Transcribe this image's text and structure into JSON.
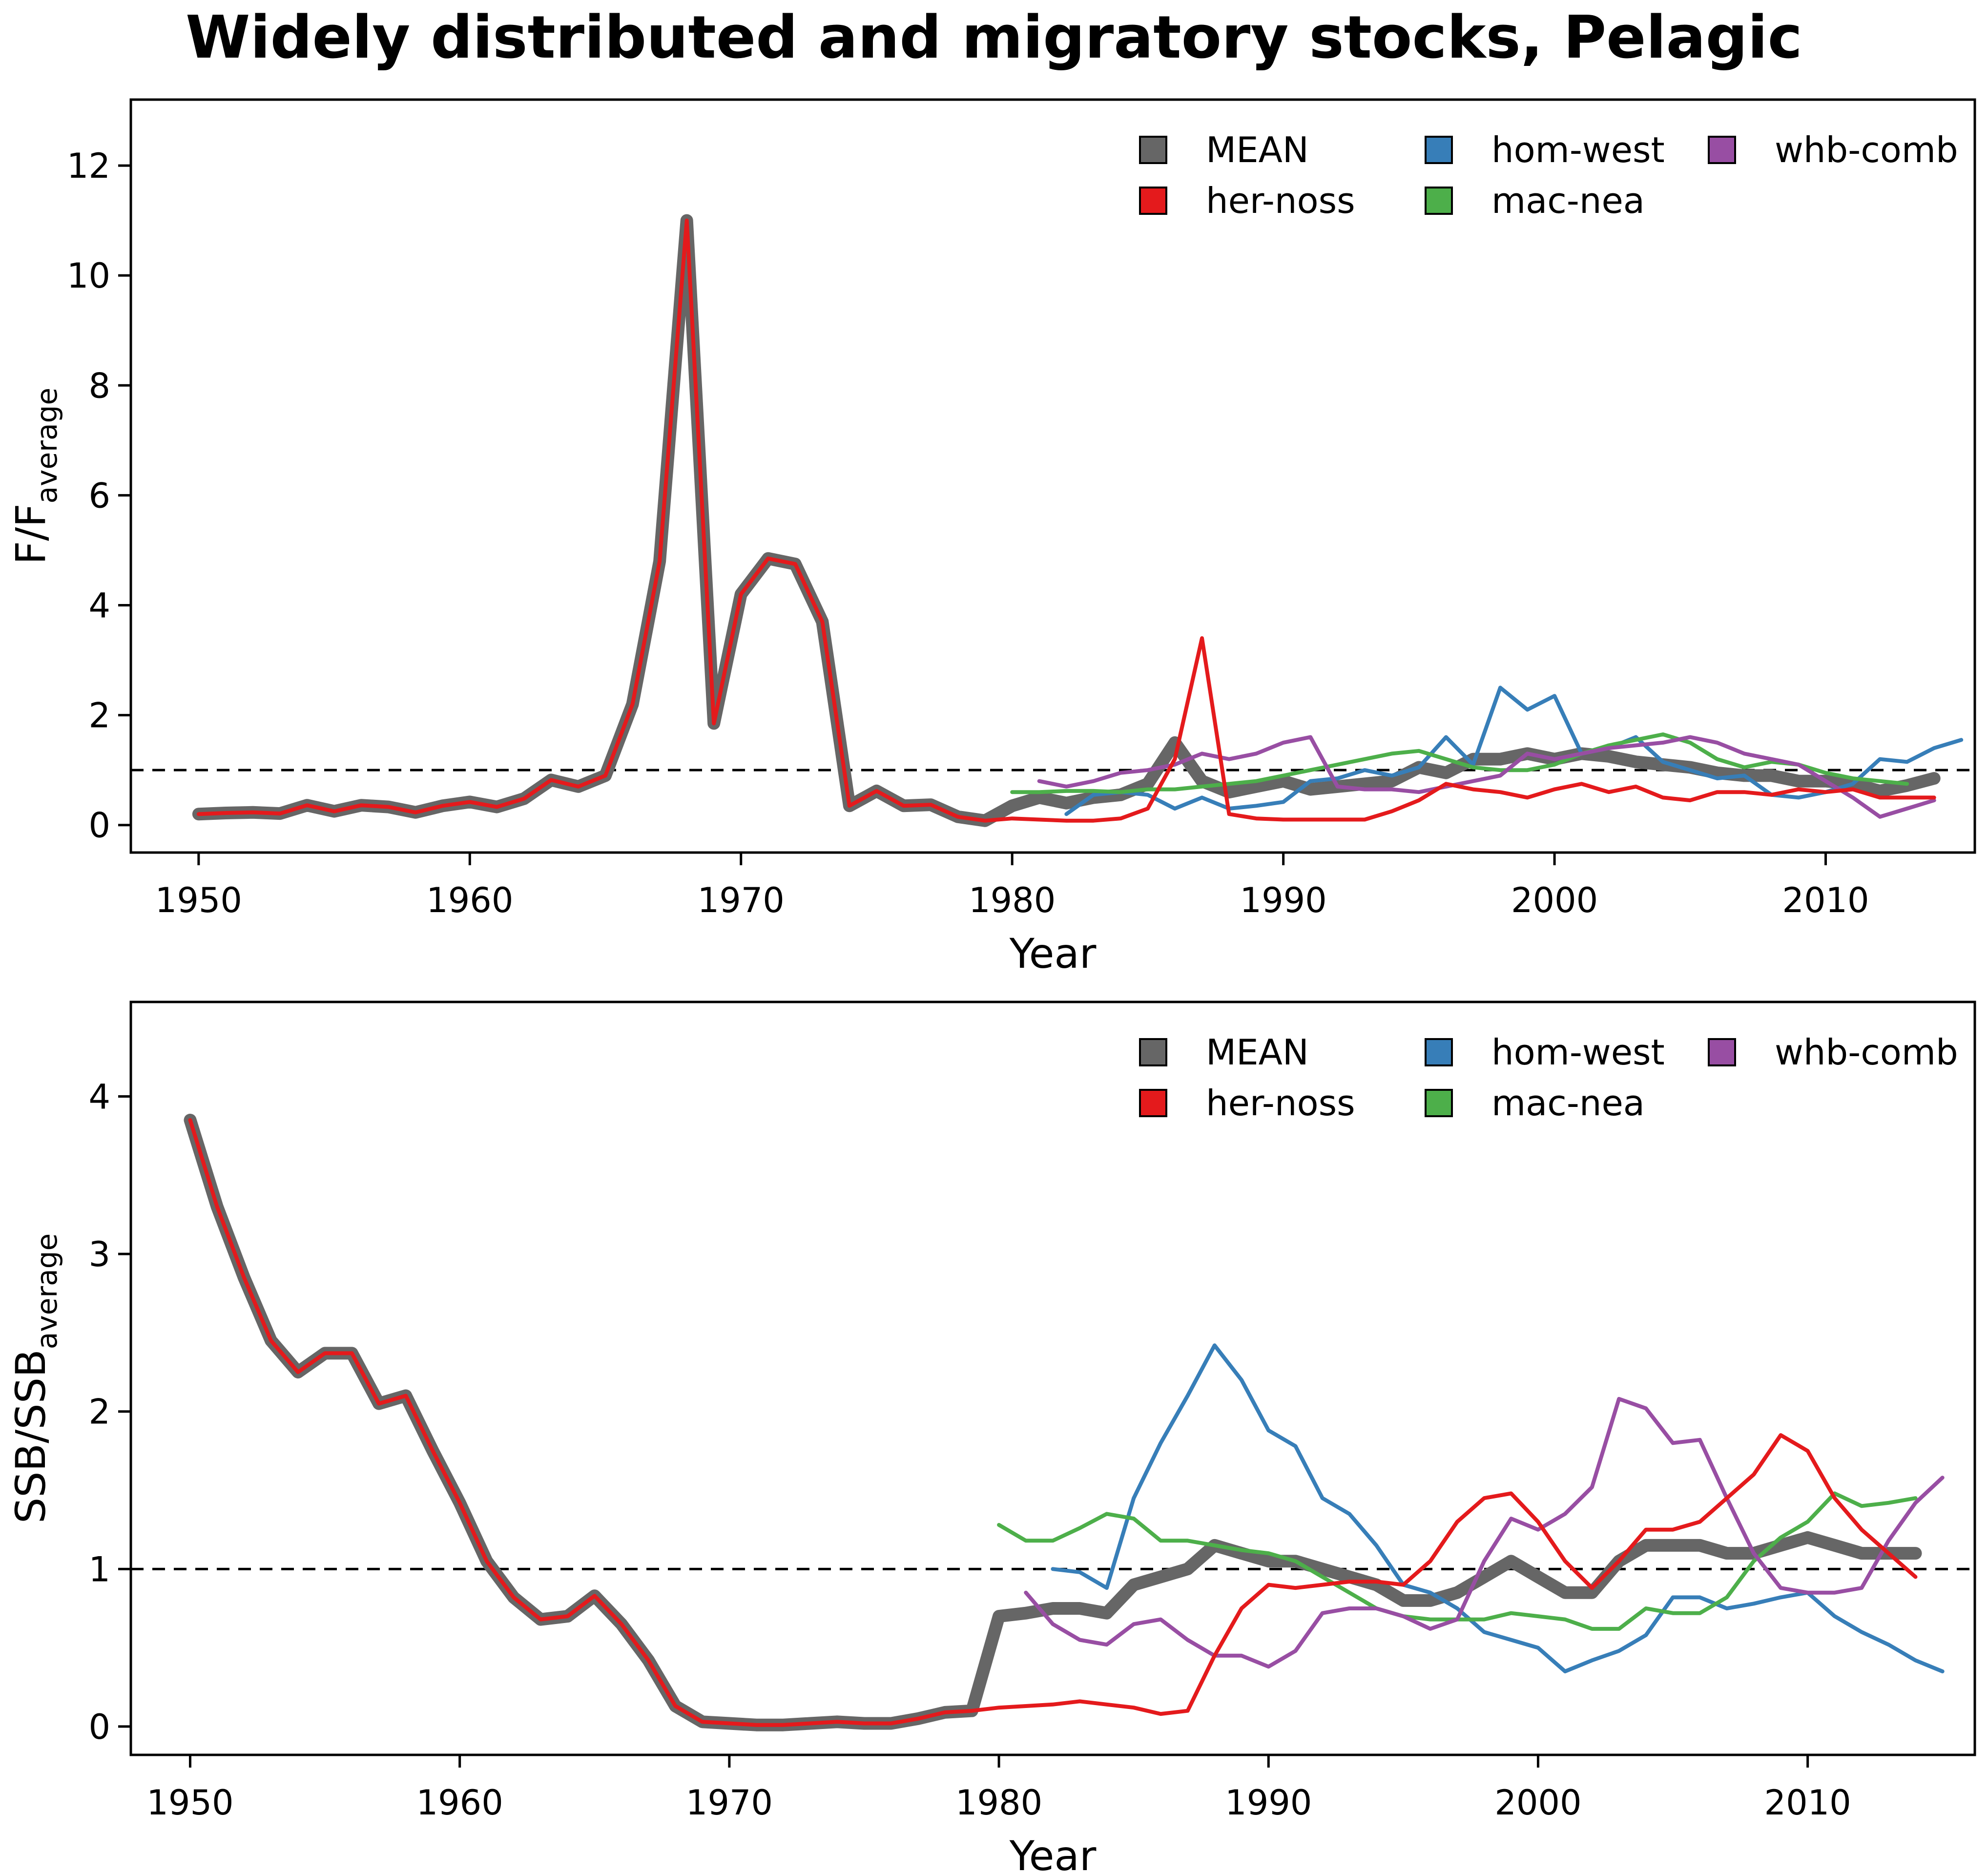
{
  "title": "Widely distributed and migratory stocks, Pelagic",
  "colors": {
    "MEAN": "#666666",
    "her-noss": "#e41a1c",
    "hom-west": "#377eb8",
    "mac-nea": "#4daf4a",
    "whb-comb": "#984ea3"
  },
  "chart_data": [
    {
      "type": "line",
      "xlabel": "Year",
      "ylabel_main": "F/F",
      "ylabel_sub": "average",
      "xlim": [
        1947.5,
        2015.5
      ],
      "ylim": [
        -0.5,
        13.2
      ],
      "xticks": [
        1950,
        1960,
        1970,
        1980,
        1990,
        2000,
        2010
      ],
      "yticks": [
        0,
        2,
        4,
        6,
        8,
        10,
        12
      ],
      "reference_line": 1,
      "legend": [
        "MEAN",
        "her-noss",
        "hom-west",
        "mac-nea",
        "whb-comb"
      ],
      "legend_position": "top-right",
      "series": [
        {
          "name": "MEAN",
          "x0": 1950,
          "values": [
            0.2,
            0.22,
            0.23,
            0.21,
            0.36,
            0.25,
            0.36,
            0.33,
            0.23,
            0.35,
            0.42,
            0.33,
            0.48,
            0.82,
            0.7,
            0.9,
            2.2,
            4.8,
            11.0,
            1.85,
            4.2,
            4.85,
            4.75,
            3.7,
            0.35,
            0.62,
            0.35,
            0.37,
            0.15,
            0.08,
            0.35,
            0.5,
            0.4,
            0.5,
            0.55,
            0.75,
            1.5,
            0.8,
            0.6,
            0.7,
            0.8,
            0.65,
            0.7,
            0.75,
            0.8,
            1.05,
            0.95,
            1.2,
            1.2,
            1.3,
            1.2,
            1.3,
            1.25,
            1.15,
            1.1,
            1.05,
            0.95,
            0.9,
            0.9,
            0.8,
            0.8,
            0.75,
            0.62,
            0.72,
            0.85
          ]
        },
        {
          "name": "her-noss",
          "x0": 1950,
          "values": [
            0.2,
            0.22,
            0.23,
            0.21,
            0.36,
            0.25,
            0.36,
            0.33,
            0.23,
            0.35,
            0.42,
            0.33,
            0.48,
            0.82,
            0.7,
            0.9,
            2.2,
            4.8,
            11.0,
            1.85,
            4.2,
            4.85,
            4.75,
            3.7,
            0.35,
            0.62,
            0.35,
            0.37,
            0.15,
            0.08,
            0.12,
            0.1,
            0.08,
            0.08,
            0.12,
            0.3,
            1.2,
            3.4,
            0.2,
            0.12,
            0.1,
            0.1,
            0.1,
            0.1,
            0.25,
            0.45,
            0.75,
            0.65,
            0.6,
            0.5,
            0.65,
            0.75,
            0.6,
            0.7,
            0.5,
            0.45,
            0.6,
            0.6,
            0.55,
            0.65,
            0.6,
            0.65,
            0.5,
            0.5,
            0.5
          ]
        },
        {
          "name": "hom-west",
          "x0": 1982,
          "values": [
            0.2,
            0.55,
            0.6,
            0.55,
            0.3,
            0.5,
            0.3,
            0.35,
            0.42,
            0.8,
            0.85,
            1.0,
            0.9,
            1.05,
            1.6,
            1.1,
            2.5,
            2.1,
            2.35,
            1.3,
            1.4,
            1.6,
            1.15,
            1.0,
            0.85,
            0.9,
            0.55,
            0.5,
            0.6,
            0.75,
            1.2,
            1.15,
            1.4,
            1.55
          ]
        },
        {
          "name": "mac-nea",
          "x0": 1980,
          "values": [
            0.6,
            0.6,
            0.62,
            0.62,
            0.6,
            0.65,
            0.65,
            0.7,
            0.75,
            0.8,
            0.9,
            1.0,
            1.1,
            1.2,
            1.3,
            1.35,
            1.2,
            1.05,
            1.0,
            1.0,
            1.1,
            1.3,
            1.45,
            1.55,
            1.65,
            1.5,
            1.2,
            1.05,
            1.15,
            1.1,
            0.95,
            0.85,
            0.8,
            0.75
          ]
        },
        {
          "name": "whb-comb",
          "x0": 1981,
          "values": [
            0.8,
            0.7,
            0.8,
            0.95,
            1.0,
            1.1,
            1.3,
            1.2,
            1.3,
            1.5,
            1.6,
            0.7,
            0.65,
            0.65,
            0.6,
            0.7,
            0.8,
            0.9,
            1.3,
            1.2,
            1.3,
            1.4,
            1.45,
            1.5,
            1.6,
            1.5,
            1.3,
            1.2,
            1.1,
            0.8,
            0.5,
            0.15,
            0.3,
            0.45
          ]
        }
      ]
    },
    {
      "type": "line",
      "xlabel": "Year",
      "ylabel_main": "SSB/SSB",
      "ylabel_sub": "average",
      "xlim": [
        1947.8,
        2016.2
      ],
      "ylim": [
        -0.18,
        4.6
      ],
      "xticks": [
        1950,
        1960,
        1970,
        1980,
        1990,
        2000,
        2010
      ],
      "yticks": [
        0,
        1,
        2,
        3,
        4
      ],
      "reference_line": 1,
      "legend": [
        "MEAN",
        "her-noss",
        "hom-west",
        "mac-nea",
        "whb-comb"
      ],
      "legend_position": "top-right",
      "series": [
        {
          "name": "MEAN",
          "x0": 1950,
          "values": [
            3.85,
            3.3,
            2.85,
            2.45,
            2.25,
            2.37,
            2.37,
            2.05,
            2.1,
            1.75,
            1.42,
            1.05,
            0.82,
            0.68,
            0.7,
            0.83,
            0.65,
            0.42,
            0.13,
            0.03,
            0.02,
            0.01,
            0.01,
            0.02,
            0.03,
            0.02,
            0.02,
            0.05,
            0.09,
            0.1,
            0.7,
            0.72,
            0.75,
            0.75,
            0.72,
            0.9,
            0.95,
            1.0,
            1.15,
            1.1,
            1.05,
            1.05,
            1.0,
            0.95,
            0.9,
            0.8,
            0.8,
            0.85,
            0.95,
            1.05,
            0.95,
            0.85,
            0.85,
            1.05,
            1.15,
            1.15,
            1.15,
            1.1,
            1.1,
            1.15,
            1.2,
            1.15,
            1.1,
            1.1,
            1.1
          ]
        },
        {
          "name": "her-noss",
          "x0": 1950,
          "values": [
            3.85,
            3.3,
            2.85,
            2.45,
            2.25,
            2.37,
            2.37,
            2.05,
            2.1,
            1.75,
            1.42,
            1.05,
            0.82,
            0.68,
            0.7,
            0.83,
            0.65,
            0.42,
            0.13,
            0.03,
            0.02,
            0.01,
            0.01,
            0.02,
            0.03,
            0.02,
            0.02,
            0.05,
            0.09,
            0.1,
            0.12,
            0.13,
            0.14,
            0.16,
            0.14,
            0.12,
            0.08,
            0.1,
            0.45,
            0.75,
            0.9,
            0.88,
            0.9,
            0.92,
            0.92,
            0.9,
            1.05,
            1.3,
            1.45,
            1.48,
            1.3,
            1.05,
            0.88,
            1.05,
            1.25,
            1.25,
            1.3,
            1.45,
            1.6,
            1.85,
            1.75,
            1.45,
            1.25,
            1.1,
            0.95
          ]
        },
        {
          "name": "hom-west",
          "x0": 1982,
          "values": [
            1.0,
            0.98,
            0.88,
            1.45,
            1.8,
            2.1,
            2.42,
            2.2,
            1.88,
            1.78,
            1.45,
            1.35,
            1.15,
            0.9,
            0.85,
            0.75,
            0.6,
            0.55,
            0.5,
            0.35,
            0.42,
            0.48,
            0.58,
            0.82,
            0.82,
            0.75,
            0.78,
            0.82,
            0.85,
            0.7,
            0.6,
            0.52,
            0.42,
            0.35
          ]
        },
        {
          "name": "mac-nea",
          "x0": 1980,
          "values": [
            1.28,
            1.18,
            1.18,
            1.26,
            1.35,
            1.32,
            1.18,
            1.18,
            1.15,
            1.12,
            1.1,
            1.05,
            0.95,
            0.85,
            0.75,
            0.7,
            0.68,
            0.68,
            0.68,
            0.72,
            0.7,
            0.68,
            0.62,
            0.62,
            0.75,
            0.72,
            0.72,
            0.82,
            1.05,
            1.2,
            1.3,
            1.48,
            1.4,
            1.42,
            1.45
          ]
        },
        {
          "name": "whb-comb",
          "x0": 1981,
          "values": [
            0.85,
            0.65,
            0.55,
            0.52,
            0.65,
            0.68,
            0.55,
            0.45,
            0.45,
            0.38,
            0.48,
            0.72,
            0.75,
            0.75,
            0.7,
            0.62,
            0.68,
            1.05,
            1.32,
            1.25,
            1.35,
            1.52,
            2.08,
            2.02,
            1.8,
            1.82,
            1.45,
            1.1,
            0.88,
            0.85,
            0.85,
            0.88,
            1.18,
            1.42,
            1.58
          ]
        }
      ]
    }
  ]
}
